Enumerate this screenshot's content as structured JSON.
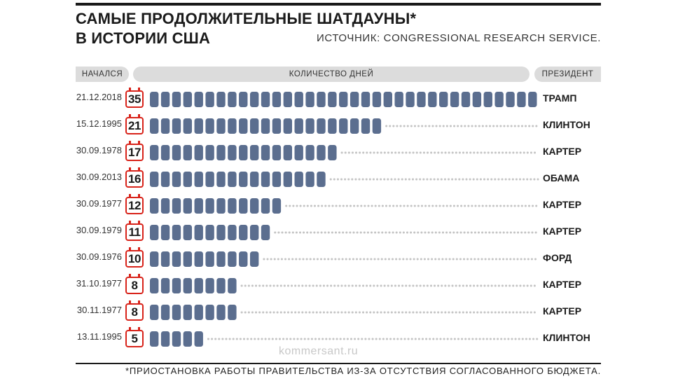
{
  "title": {
    "line1": "САМЫЕ ПРОДОЛЖИТЕЛЬНЫЕ ШАТДАУНЫ*",
    "line2": "В ИСТОРИИ США"
  },
  "source": "ИСТОЧНИК: CONGRESSIONAL RESEARCH SERVICE.",
  "footnote": "*ПРИОСТАНОВКА РАБОТЫ ПРАВИТЕЛЬСТВА ИЗ-ЗА ОТСУТСТВИЯ СОГЛАСОВАННОГО БЮДЖЕТА.",
  "watermark": "kommersant.ru",
  "colors": {
    "bar": "#5b6e8f",
    "dots": "#c4c4c4",
    "calendar": "#d8231a"
  },
  "chart_data": {
    "type": "bar",
    "orientation": "horizontal",
    "column_headers": {
      "start": "НАЧАЛСЯ",
      "value": "КОЛИЧЕСТВО ДНЕЙ",
      "president": "ПРЕЗИДЕНТ"
    },
    "max_days": 35,
    "rows": [
      {
        "start": "21.12.2018",
        "days": 35,
        "president": "ТРАМП"
      },
      {
        "start": "15.12.1995",
        "days": 21,
        "president": "КЛИНТОН"
      },
      {
        "start": "30.09.1978",
        "days": 17,
        "president": "КАРТЕР"
      },
      {
        "start": "30.09.2013",
        "days": 16,
        "president": "ОБАМА"
      },
      {
        "start": "30.09.1977",
        "days": 12,
        "president": "КАРТЕР"
      },
      {
        "start": "30.09.1979",
        "days": 11,
        "president": "КАРТЕР"
      },
      {
        "start": "30.09.1976",
        "days": 10,
        "president": "ФОРД"
      },
      {
        "start": "31.10.1977",
        "days": 8,
        "president": "КАРТЕР"
      },
      {
        "start": "30.11.1977",
        "days": 8,
        "president": "КАРТЕР"
      },
      {
        "start": "13.11.1995",
        "days": 5,
        "president": "КЛИНТОН"
      }
    ]
  }
}
